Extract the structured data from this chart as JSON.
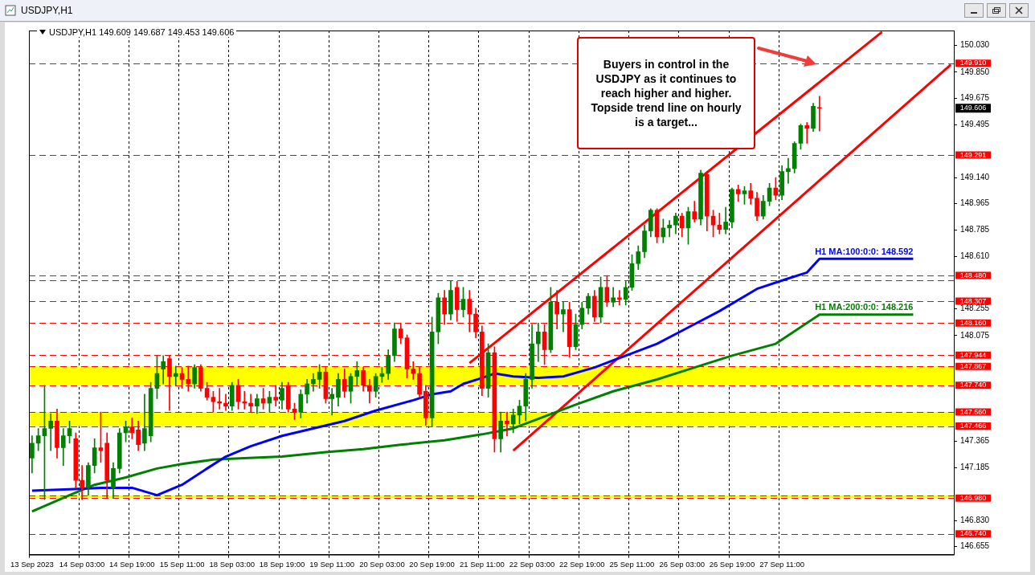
{
  "chart_data": {
    "type": "candlestick",
    "title": "USDJPY,H1",
    "annotations": [
      "USDJPY,H1 149.609 149.687 149.453 149.606",
      "Buyers in control in the USDJPY as it continues to reach higher and higher. Topside trend line on hourly is a target...",
      "149.606"
    ],
    "categories": [
      "13 Sep 2023",
      null,
      null,
      null,
      null,
      null,
      null,
      null,
      "14 Sep 03:00",
      null,
      null,
      null,
      null,
      null,
      null,
      null,
      "14 Sep 19:00",
      null,
      null,
      null,
      null,
      null,
      null,
      null,
      "15 Sep 11:00",
      null,
      null,
      null,
      null,
      null,
      null,
      null,
      "18 Sep 03:00",
      null,
      null,
      null,
      null,
      null,
      null,
      null,
      "18 Sep 19:00",
      null,
      null,
      null,
      null,
      null,
      null,
      null,
      "19 Sep 11:00",
      null,
      null,
      null,
      null,
      null,
      null,
      null,
      "20 Sep 03:00",
      null,
      null,
      null,
      null,
      null,
      null,
      null,
      "20 Sep 19:00",
      null,
      null,
      null,
      null,
      null,
      null,
      null,
      "21 Sep 11:00",
      null,
      null,
      null,
      null,
      null,
      null,
      null,
      "22 Sep 03:00",
      null,
      null,
      null,
      null,
      null,
      null,
      null,
      "22 Sep 19:00",
      null,
      null,
      null,
      null,
      null,
      null,
      null,
      "25 Sep 11:00",
      null,
      null,
      null,
      null,
      null,
      null,
      null,
      "26 Sep 03:00",
      null,
      null,
      null,
      null,
      null,
      null,
      null,
      "26 Sep 19:00",
      null,
      null,
      null,
      null,
      null,
      null,
      null,
      "27 Sep 11:00",
      null,
      null,
      null,
      null,
      null,
      null,
      null,
      null,
      null,
      null,
      null,
      null,
      null,
      null,
      null,
      null,
      null,
      null,
      null,
      null,
      null,
      null,
      null,
      null,
      null,
      null,
      null
    ],
    "ohlc": [
      [
        147.25,
        147.4,
        147.15,
        147.35
      ],
      [
        147.35,
        147.45,
        147.3,
        147.4
      ],
      [
        147.4,
        147.74,
        146.97,
        147.45
      ],
      [
        147.45,
        147.55,
        147.3,
        147.5
      ],
      [
        147.5,
        147.58,
        147.25,
        147.32
      ],
      [
        147.32,
        147.45,
        147.2,
        147.4
      ],
      [
        147.4,
        147.5,
        147.35,
        147.45
      ],
      [
        147.38,
        147.42,
        147.05,
        147.1
      ],
      [
        147.1,
        147.2,
        146.97,
        147.05
      ],
      [
        147.05,
        147.22,
        147.0,
        147.2
      ],
      [
        147.2,
        147.38,
        147.15,
        147.32
      ],
      [
        147.32,
        147.56,
        147.22,
        147.3
      ],
      [
        147.35,
        147.42,
        146.98,
        147.1
      ],
      [
        147.05,
        147.22,
        146.98,
        147.18
      ],
      [
        147.18,
        147.45,
        147.15,
        147.42
      ],
      [
        147.42,
        147.5,
        147.36,
        147.46
      ],
      [
        147.46,
        147.52,
        147.38,
        147.42
      ],
      [
        147.44,
        147.5,
        147.3,
        147.34
      ],
      [
        147.35,
        147.68,
        147.3,
        147.45
      ],
      [
        147.4,
        147.76,
        147.36,
        147.72
      ],
      [
        147.72,
        147.94,
        147.65,
        147.82
      ],
      [
        147.85,
        147.94,
        147.75,
        147.9
      ],
      [
        147.92,
        147.94,
        147.57,
        147.8
      ],
      [
        147.8,
        147.87,
        147.74,
        147.82
      ],
      [
        147.82,
        147.86,
        147.72,
        147.78
      ],
      [
        147.78,
        147.87,
        147.7,
        147.75
      ],
      [
        147.75,
        147.88,
        147.72,
        147.86
      ],
      [
        147.86,
        147.88,
        147.7,
        147.72
      ],
      [
        147.72,
        147.76,
        147.64,
        147.66
      ],
      [
        147.66,
        147.7,
        147.56,
        147.63
      ],
      [
        147.63,
        147.72,
        147.58,
        147.62
      ],
      [
        147.62,
        147.68,
        147.57,
        147.6
      ],
      [
        147.6,
        147.76,
        147.57,
        147.74
      ],
      [
        147.74,
        147.78,
        147.58,
        147.63
      ],
      [
        147.63,
        147.7,
        147.58,
        147.62
      ],
      [
        147.62,
        147.68,
        147.56,
        147.6
      ],
      [
        147.6,
        147.68,
        147.55,
        147.65
      ],
      [
        147.65,
        147.72,
        147.58,
        147.62
      ],
      [
        147.62,
        147.7,
        147.56,
        147.66
      ],
      [
        147.66,
        147.74,
        147.6,
        147.64
      ],
      [
        147.64,
        147.76,
        147.58,
        147.72
      ],
      [
        147.74,
        147.76,
        147.56,
        147.58
      ],
      [
        147.58,
        147.62,
        147.51,
        147.56
      ],
      [
        147.56,
        147.71,
        147.52,
        147.68
      ],
      [
        147.68,
        147.78,
        147.62,
        147.75
      ],
      [
        147.75,
        147.82,
        147.7,
        147.78
      ],
      [
        147.78,
        147.88,
        147.72,
        147.83
      ],
      [
        147.83,
        147.86,
        147.62,
        147.65
      ],
      [
        147.65,
        147.72,
        147.54,
        147.68
      ],
      [
        147.66,
        147.82,
        147.6,
        147.78
      ],
      [
        147.78,
        147.85,
        147.66,
        147.7
      ],
      [
        147.7,
        147.82,
        147.62,
        147.8
      ],
      [
        147.8,
        147.9,
        147.74,
        147.84
      ],
      [
        147.84,
        147.86,
        147.7,
        147.74
      ],
      [
        147.74,
        147.78,
        147.62,
        147.7
      ],
      [
        147.7,
        147.82,
        147.66,
        147.8
      ],
      [
        147.8,
        147.86,
        147.76,
        147.82
      ],
      [
        147.82,
        147.98,
        147.78,
        147.94
      ],
      [
        147.94,
        148.16,
        147.9,
        148.12
      ],
      [
        148.12,
        148.16,
        148.02,
        148.06
      ],
      [
        148.06,
        148.08,
        147.79,
        147.85
      ],
      [
        147.85,
        147.9,
        147.78,
        147.82
      ],
      [
        147.82,
        147.86,
        147.66,
        147.68
      ],
      [
        147.7,
        147.74,
        147.47,
        147.52
      ],
      [
        147.52,
        148.2,
        147.46,
        148.1
      ],
      [
        148.1,
        148.36,
        148.02,
        148.33
      ],
      [
        148.33,
        148.38,
        148.15,
        148.22
      ],
      [
        148.22,
        148.44,
        148.18,
        148.38
      ],
      [
        148.4,
        148.44,
        148.17,
        148.25
      ],
      [
        148.25,
        148.4,
        148.2,
        148.32
      ],
      [
        148.32,
        148.38,
        148.1,
        148.22
      ],
      [
        148.22,
        148.26,
        148.06,
        148.1
      ],
      [
        148.1,
        148.14,
        147.67,
        147.72
      ],
      [
        147.72,
        148.02,
        147.66,
        147.96
      ],
      [
        147.96,
        148.0,
        147.29,
        147.38
      ],
      [
        147.38,
        147.56,
        147.29,
        147.5
      ],
      [
        147.5,
        147.56,
        147.4,
        147.48
      ],
      [
        147.48,
        147.58,
        147.42,
        147.54
      ],
      [
        147.54,
        147.64,
        147.48,
        147.6
      ],
      [
        147.6,
        147.82,
        147.5,
        147.78
      ],
      [
        147.78,
        148.15,
        147.72,
        148.02
      ],
      [
        148.02,
        148.16,
        147.9,
        148.1
      ],
      [
        148.1,
        148.15,
        147.88,
        147.98
      ],
      [
        147.98,
        148.4,
        147.96,
        148.3
      ],
      [
        148.3,
        148.38,
        148.12,
        148.22
      ],
      [
        148.22,
        148.3,
        148.1,
        148.25
      ],
      [
        148.25,
        148.3,
        147.93,
        148.0
      ],
      [
        148.0,
        148.22,
        147.98,
        148.15
      ],
      [
        148.15,
        148.3,
        148.12,
        148.26
      ],
      [
        148.26,
        148.36,
        148.22,
        148.34
      ],
      [
        148.34,
        148.38,
        148.17,
        148.2
      ],
      [
        148.2,
        148.47,
        148.16,
        148.4
      ],
      [
        148.4,
        148.48,
        148.27,
        148.3
      ],
      [
        148.3,
        148.4,
        148.27,
        148.33
      ],
      [
        148.33,
        148.38,
        148.28,
        148.32
      ],
      [
        148.32,
        148.44,
        148.28,
        148.4
      ],
      [
        148.4,
        148.62,
        148.38,
        148.56
      ],
      [
        148.56,
        148.68,
        148.52,
        148.64
      ],
      [
        148.64,
        148.82,
        148.6,
        148.78
      ],
      [
        148.78,
        148.93,
        148.74,
        148.92
      ],
      [
        148.92,
        148.93,
        148.7,
        148.74
      ],
      [
        148.74,
        148.86,
        148.7,
        148.8
      ],
      [
        148.8,
        148.85,
        148.74,
        148.82
      ],
      [
        148.82,
        148.9,
        148.76,
        148.88
      ],
      [
        148.88,
        148.9,
        148.74,
        148.8
      ],
      [
        148.8,
        148.94,
        148.69,
        148.91
      ],
      [
        148.91,
        148.98,
        148.84,
        148.86
      ],
      [
        148.86,
        149.19,
        148.82,
        149.17
      ],
      [
        149.16,
        149.18,
        148.78,
        148.88
      ],
      [
        148.88,
        148.92,
        148.74,
        148.82
      ],
      [
        148.82,
        148.9,
        148.76,
        148.79
      ],
      [
        148.79,
        148.94,
        148.76,
        148.84
      ],
      [
        148.84,
        149.07,
        148.8,
        149.06
      ],
      [
        149.06,
        149.09,
        148.98,
        149.03
      ],
      [
        149.03,
        149.08,
        148.96,
        149.05
      ],
      [
        149.05,
        149.1,
        148.96,
        149.0
      ],
      [
        149.0,
        149.04,
        148.85,
        148.88
      ],
      [
        148.88,
        149.02,
        148.86,
        148.98
      ],
      [
        148.98,
        149.1,
        148.95,
        149.07
      ],
      [
        149.07,
        149.14,
        148.99,
        149.02
      ],
      [
        149.02,
        149.22,
        148.99,
        149.18
      ],
      [
        149.18,
        149.27,
        149.1,
        149.2
      ],
      [
        149.2,
        149.38,
        149.17,
        149.37
      ],
      [
        149.37,
        149.5,
        149.33,
        149.49
      ],
      [
        149.49,
        149.51,
        149.37,
        149.47
      ],
      [
        149.47,
        149.64,
        149.45,
        149.62
      ],
      [
        149.609,
        149.687,
        149.453,
        149.606
      ],
      null,
      null,
      null,
      null,
      null,
      null,
      null,
      null,
      null,
      null,
      null,
      null,
      null,
      null,
      null,
      null,
      null,
      null,
      null,
      null,
      null
    ],
    "colors": [
      "#008000",
      "#008000",
      "#008000",
      "#008000",
      "#ff0000",
      "#008000",
      "#008000",
      "#ff0000",
      "#ff0000",
      "#008000",
      "#008000",
      "#ff0000",
      "#ff0000",
      "#008000",
      "#008000",
      "#008000",
      "#ff0000",
      "#ff0000",
      "#008000",
      "#008000",
      "#008000",
      "#008000",
      "#ff0000",
      "#008000",
      "#ff0000",
      "#ff0000",
      "#008000",
      "#ff0000",
      "#ff0000",
      "#ff0000",
      "#ff0000",
      "#ff0000",
      "#008000",
      "#ff0000",
      "#ff0000",
      "#ff0000",
      "#008000",
      "#ff0000",
      "#008000",
      "#ff0000",
      "#008000",
      "#ff0000",
      "#ff0000",
      "#008000",
      "#008000",
      "#008000",
      "#008000",
      "#ff0000",
      "#008000",
      "#008000",
      "#ff0000",
      "#008000",
      "#008000",
      "#ff0000",
      "#ff0000",
      "#008000",
      "#008000",
      "#008000",
      "#008000",
      "#ff0000",
      "#ff0000",
      "#ff0000",
      "#ff0000",
      "#ff0000",
      "#008000",
      "#008000",
      "#ff0000",
      "#008000",
      "#ff0000",
      "#008000",
      "#ff0000",
      "#ff0000",
      "#ff0000",
      "#008000",
      "#ff0000",
      "#008000",
      "#ff0000",
      "#008000",
      "#008000",
      "#008000",
      "#008000",
      "#008000",
      "#ff0000",
      "#008000",
      "#ff0000",
      "#008000",
      "#ff0000",
      "#008000",
      "#008000",
      "#008000",
      "#ff0000",
      "#008000",
      "#ff0000",
      "#008000",
      "#ff0000",
      "#008000",
      "#008000",
      "#008000",
      "#008000",
      "#008000",
      "#ff0000",
      "#008000",
      "#008000",
      "#008000",
      "#ff0000",
      "#008000",
      "#ff0000",
      "#008000",
      "#ff0000",
      "#ff0000",
      "#ff0000",
      "#008000",
      "#008000",
      "#ff0000",
      "#008000",
      "#ff0000",
      "#ff0000",
      "#008000",
      "#008000",
      "#ff0000",
      "#008000",
      "#008000",
      "#008000",
      "#008000",
      "#ff0000",
      "#008000",
      "#ff0000",
      null,
      null,
      null,
      null,
      null,
      null,
      null,
      null,
      null,
      null,
      null,
      null,
      null,
      null,
      null,
      null,
      null,
      null,
      null,
      null,
      null
    ],
    "series": [
      {
        "type": "line",
        "name": "H1 MA:100:0:0: 148.592",
        "color": "#0000ff",
        "values": [
          147.03,
          null,
          null,
          null,
          null,
          null,
          147.04,
          null,
          null,
          null,
          null,
          147.05,
          null,
          null,
          null,
          null,
          147.05,
          null,
          null,
          null,
          147.0,
          null,
          null,
          null,
          147.07,
          null,
          null,
          null,
          147.18,
          null,
          null,
          147.26,
          null,
          null,
          null,
          147.33,
          null,
          null,
          null,
          null,
          147.4,
          null,
          null,
          null,
          null,
          147.45,
          null,
          null,
          null,
          null,
          147.5,
          null,
          null,
          null,
          null,
          147.57,
          null,
          null,
          null,
          null,
          null,
          147.64,
          null,
          null,
          147.68,
          null,
          null,
          147.7,
          null,
          147.75,
          null,
          null,
          147.79,
          null,
          147.82,
          null,
          null,
          147.8,
          null,
          null,
          null,
          147.79,
          null,
          null,
          null,
          147.8,
          null,
          null,
          null,
          null,
          147.86,
          null,
          null,
          null,
          null,
          147.94,
          null,
          null,
          null,
          null,
          148.02,
          null,
          null,
          null,
          null,
          148.13,
          null,
          null,
          null,
          null,
          148.24,
          null,
          null,
          null,
          null,
          null,
          148.39,
          null,
          null,
          null,
          null,
          148.46,
          null,
          null,
          148.5,
          null,
          148.592,
          null,
          null,
          null,
          null,
          null,
          null,
          null,
          null,
          null,
          null,
          null,
          null,
          null,
          null,
          148.592,
          null,
          null,
          null,
          null,
          null,
          null
        ]
      },
      {
        "type": "line",
        "name": "H1 MA:200:0:0: 148.216",
        "color": "#007f00",
        "values": [
          146.89,
          null,
          null,
          null,
          null,
          null,
          147.0,
          null,
          null,
          null,
          147.07,
          null,
          null,
          null,
          null,
          147.12,
          null,
          null,
          null,
          null,
          147.18,
          null,
          null,
          null,
          147.21,
          null,
          null,
          null,
          null,
          147.24,
          null,
          null,
          null,
          null,
          147.25,
          null,
          null,
          null,
          null,
          null,
          147.26,
          null,
          null,
          null,
          null,
          null,
          null,
          147.29,
          null,
          null,
          null,
          null,
          null,
          147.31,
          null,
          null,
          null,
          null,
          null,
          147.34,
          null,
          null,
          null,
          null,
          null,
          null,
          147.37,
          null,
          null,
          null,
          null,
          null,
          147.41,
          null,
          null,
          null,
          null,
          147.45,
          null,
          null,
          null,
          null,
          147.53,
          null,
          null,
          null,
          null,
          147.61,
          null,
          null,
          null,
          null,
          null,
          147.7,
          null,
          null,
          null,
          null,
          null,
          null,
          147.78,
          null,
          null,
          null,
          null,
          null,
          147.86,
          null,
          null,
          null,
          null,
          null,
          147.94,
          null,
          null,
          null,
          null,
          null,
          null,
          148.02,
          null,
          null,
          null,
          null,
          null,
          null,
          148.216,
          null,
          null,
          null,
          null,
          null,
          null,
          null,
          null,
          null,
          null,
          null,
          null,
          null,
          null,
          148.216,
          null,
          null,
          null,
          null,
          null,
          null
        ]
      },
      {
        "type": "line",
        "color": "#ff0000",
        "values": [
          null,
          null,
          null,
          null,
          null,
          null,
          null,
          null,
          null,
          null,
          null,
          null,
          null,
          null,
          null,
          null,
          null,
          null,
          null,
          null,
          null,
          null,
          null,
          null,
          null,
          null,
          null,
          null,
          null,
          null,
          null,
          null,
          null,
          null,
          null,
          null,
          null,
          null,
          null,
          null,
          null,
          null,
          null,
          null,
          null,
          null,
          null,
          null,
          null,
          null,
          null,
          null,
          null,
          null,
          null,
          null,
          null,
          null,
          null,
          null,
          null,
          null,
          null,
          null,
          null,
          null,
          null,
          null,
          null,
          null,
          147.89,
          null,
          null,
          null,
          null,
          null,
          null,
          null,
          null,
          null,
          null,
          null,
          null,
          null,
          null,
          null,
          null,
          null,
          null,
          null,
          null,
          null,
          null,
          null,
          null,
          null,
          null,
          null,
          null,
          null,
          null,
          null,
          null,
          null,
          null,
          null,
          null,
          null,
          null,
          null,
          null,
          null,
          null,
          null,
          null,
          null,
          null,
          null,
          null,
          null,
          null,
          null,
          null,
          null,
          null,
          null,
          null,
          null,
          null,
          null,
          null,
          null,
          null,
          null,
          null,
          null,
          150.12,
          null,
          null,
          null,
          null,
          null,
          null,
          null,
          null,
          null,
          null,
          null
        ]
      },
      {
        "type": "line",
        "color": "#ff0000",
        "values": [
          null,
          null,
          null,
          null,
          null,
          null,
          null,
          null,
          null,
          null,
          null,
          null,
          null,
          null,
          null,
          null,
          null,
          null,
          null,
          null,
          null,
          null,
          null,
          null,
          null,
          null,
          null,
          null,
          null,
          null,
          null,
          null,
          null,
          null,
          null,
          null,
          null,
          null,
          null,
          null,
          null,
          null,
          null,
          null,
          null,
          null,
          null,
          null,
          null,
          null,
          null,
          null,
          null,
          null,
          null,
          null,
          null,
          null,
          null,
          null,
          null,
          null,
          null,
          null,
          null,
          null,
          null,
          null,
          null,
          null,
          null,
          null,
          null,
          null,
          null,
          null,
          null,
          147.3,
          null,
          null,
          null,
          null,
          null,
          null,
          null,
          null,
          null,
          null,
          null,
          null,
          null,
          null,
          null,
          null,
          null,
          null,
          null,
          null,
          null,
          null,
          null,
          null,
          null,
          null,
          null,
          null,
          null,
          null,
          null,
          null,
          null,
          null,
          null,
          null,
          null,
          null,
          null,
          null,
          null,
          null,
          null,
          null,
          null,
          null,
          null,
          null,
          null,
          null,
          null,
          null,
          null,
          null,
          null,
          null,
          null,
          null,
          null,
          null,
          null,
          null,
          null,
          null,
          null,
          null,
          null,
          null,
          null,
          149.9
        ]
      }
    ],
    "ylim": [
      146.6,
      150.13
    ],
    "yticks": [
      {
        "value": 146.655,
        "label": "146.655"
      },
      {
        "value": 146.83,
        "label": "146.830"
      },
      {
        "value": 147.185,
        "label": "147.185"
      },
      {
        "value": 147.365,
        "label": "147.365"
      },
      {
        "value": 148.075,
        "label": "148.075"
      },
      {
        "value": 148.255,
        "label": "148.255"
      },
      {
        "value": 148.61,
        "label": "148.610"
      },
      {
        "value": 148.785,
        "label": "148.785"
      },
      {
        "value": 148.965,
        "label": "148.965"
      },
      {
        "value": 149.14,
        "label": "149.140"
      },
      {
        "value": 149.495,
        "label": "149.495"
      },
      {
        "value": 149.675,
        "label": "149.675"
      },
      {
        "value": 149.85,
        "label": "149.850"
      },
      {
        "value": 150.03,
        "label": "150.030"
      }
    ],
    "ref_lines": [
      {
        "axis": "y",
        "value": 149.91,
        "label": "149.910",
        "color": "#ff0000",
        "line_style": "dashed"
      },
      {
        "axis": "y",
        "value": 149.291,
        "label": "149.291",
        "color": "#ff0000",
        "line_style": "dashed"
      },
      {
        "axis": "y",
        "value": 148.48,
        "label": "148.480",
        "color": "#ff0000",
        "line_style": "dashed"
      },
      {
        "axis": "y",
        "value": 148.45,
        "label": null,
        "color": "#ff0000",
        "line_style": "dashed"
      },
      {
        "axis": "y",
        "value": 148.307,
        "label": "148.307",
        "color": "#ff0000",
        "line_style": "dashed"
      },
      {
        "axis": "y",
        "value": 148.16,
        "label": "148.160",
        "color": "#ff0000",
        "line_style": "dashed"
      },
      {
        "axis": "y",
        "value": 147.944,
        "label": "147.944",
        "color": "#ff0000",
        "line_style": "dashed"
      },
      {
        "axis": "y",
        "value": 147.867,
        "label": "147.867",
        "color": "#ff0000",
        "line_style": "dashed"
      },
      {
        "axis": "y",
        "value": 147.74,
        "label": "147.740",
        "color": "#ff0000",
        "line_style": "dashed"
      },
      {
        "axis": "y",
        "value": 147.56,
        "label": "147.560",
        "color": "#ff0000",
        "line_style": "dashed"
      },
      {
        "axis": "y",
        "value": 147.466,
        "label": "147.466",
        "color": "#ff0000",
        "line_style": "dashed"
      },
      {
        "axis": "y",
        "value": 147.0,
        "label": null,
        "color": "#ff0000",
        "line_style": "dashed"
      },
      {
        "axis": "y",
        "value": 146.98,
        "label": "146.980",
        "color": "#ff0000",
        "line_style": "dashed"
      },
      {
        "axis": "y",
        "value": 146.74,
        "label": "146.740",
        "color": "#ff0000",
        "line_style": "dashed"
      }
    ],
    "bands": [
      {
        "axis": "y",
        "from": 147.74,
        "to": 147.867,
        "color": "#ffff00"
      },
      {
        "axis": "y",
        "from": 147.466,
        "to": 147.56,
        "color": "#ffff00"
      },
      {
        "axis": "y",
        "from": 146.98,
        "to": 147.0,
        "color": "#ffff00"
      }
    ],
    "grid": "x",
    "legend": false,
    "marker": "none"
  }
}
